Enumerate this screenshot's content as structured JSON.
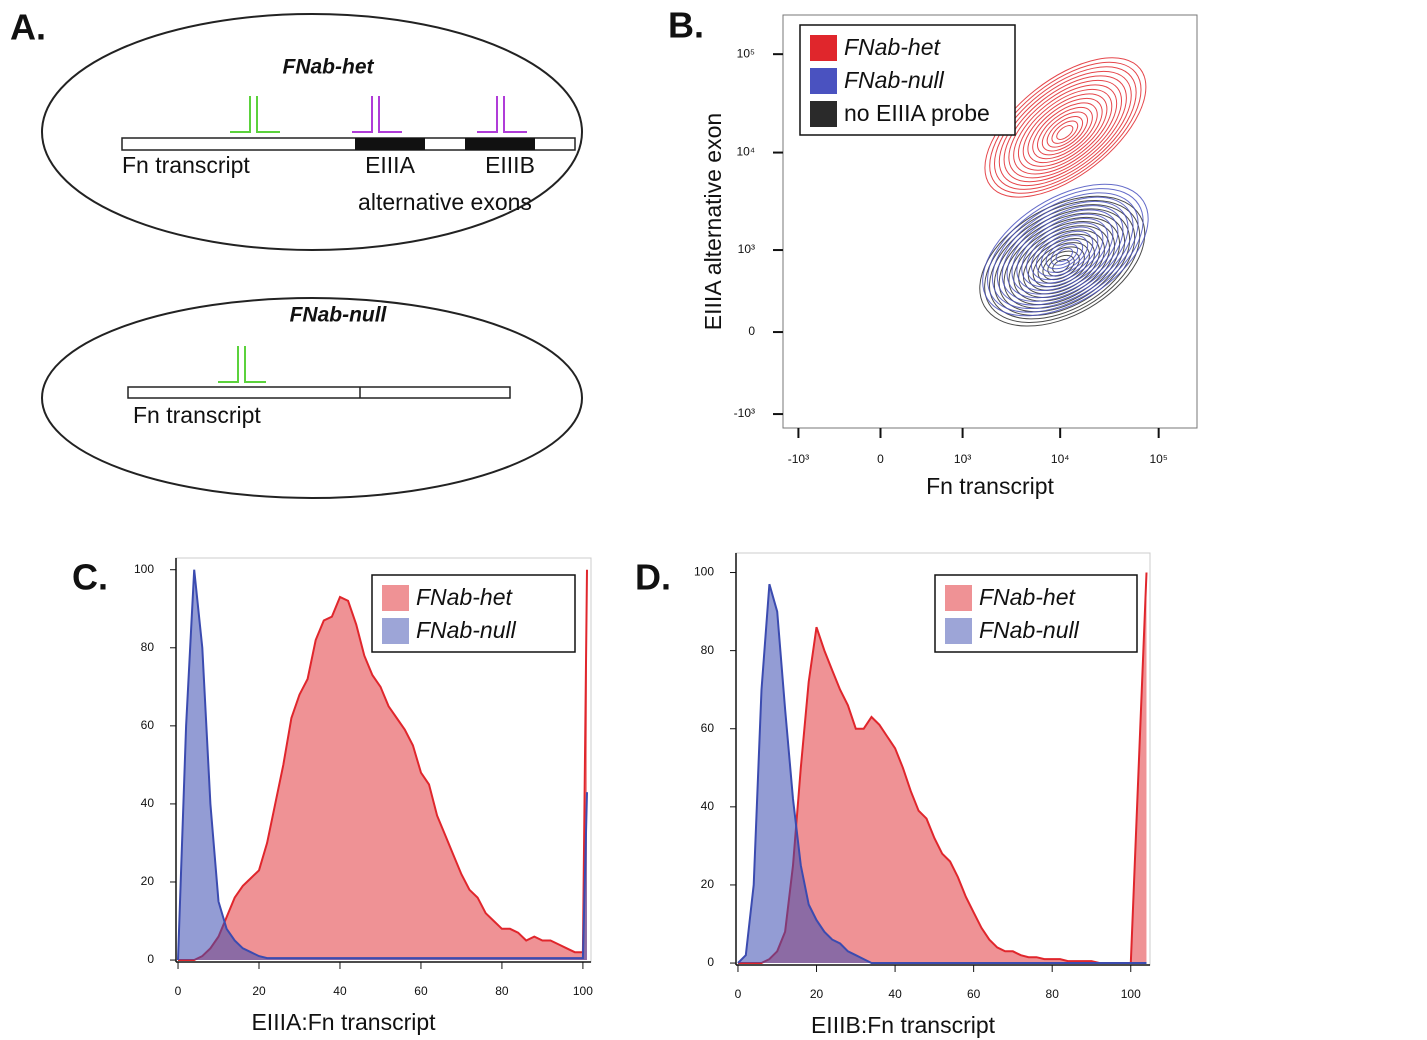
{
  "diagram": {
    "panel": "A.",
    "het": {
      "title": "FNab-het",
      "transcript": "Fn transcript",
      "exon_a": "EIIIA",
      "exon_b": "EIIIB",
      "exons_caption": "alternative exons"
    },
    "null": {
      "title": "FNab-null",
      "transcript": "Fn transcript"
    }
  },
  "chart_data": [
    {
      "type": "contour",
      "panel": "B.",
      "xlabel": "Fn transcript",
      "ylabel": "EIIIA alternative exon",
      "xscale": "biexponential",
      "yscale": "biexponential",
      "xlim": [
        -1450,
        245000
      ],
      "ylim": [
        -1400,
        250000
      ],
      "xticks": [
        {
          "value": -1000,
          "label": "-10³"
        },
        0,
        {
          "value": 1000,
          "label": "10³"
        },
        {
          "value": 10000,
          "label": "10⁴"
        },
        {
          "value": 100000,
          "label": "10⁵"
        }
      ],
      "yticks": [
        {
          "value": -1000,
          "label": "-10³"
        },
        0,
        {
          "value": 1000,
          "label": "10³"
        },
        {
          "value": 10000,
          "label": "10⁴"
        },
        {
          "value": 100000,
          "label": "10⁵"
        }
      ],
      "legend": "upper left",
      "series": [
        {
          "name": "FNab-het",
          "color": "#e0262c",
          "x": 11300,
          "y": 18000
        },
        {
          "name": "FNab-null",
          "color": "#4a52c0",
          "x": 11300,
          "y": 1000
        },
        {
          "name": "no EIIIA probe",
          "color": "#2a2a2a",
          "x": 10500,
          "y": 760
        }
      ]
    },
    {
      "type": "area",
      "panel": "C.",
      "xlabel": "EIIIA:Fn transcript",
      "xlim": [
        -0.5,
        102
      ],
      "ylim": [
        -0.5,
        103
      ],
      "xticks": [
        0,
        20,
        40,
        60,
        80,
        100
      ],
      "yticks": [
        0,
        20,
        40,
        60,
        80,
        100
      ],
      "legend": "upper right",
      "x": [
        0,
        2,
        4,
        6,
        8,
        10,
        12,
        14,
        16,
        18,
        20,
        22,
        24,
        26,
        28,
        30,
        32,
        34,
        36,
        38,
        40,
        42,
        44,
        46,
        48,
        50,
        52,
        54,
        56,
        58,
        60,
        62,
        64,
        66,
        68,
        70,
        72,
        74,
        76,
        78,
        80,
        82,
        84,
        86,
        88,
        90,
        92,
        94,
        96,
        98,
        100,
        101
      ],
      "series": [
        {
          "name": "FNab-het",
          "color": "#e0262c",
          "values": [
            0,
            0,
            0,
            1,
            3,
            6,
            11,
            16,
            19,
            21,
            23,
            30,
            40,
            50,
            62,
            68,
            72,
            82,
            87,
            88,
            93,
            92,
            86,
            78,
            73,
            70,
            65,
            62,
            59,
            55,
            48,
            45,
            37,
            32,
            27,
            22,
            18,
            16,
            12,
            10,
            8,
            8,
            7,
            5,
            6,
            5,
            5,
            4,
            3,
            2,
            2,
            100
          ]
        },
        {
          "name": "FNab-null",
          "color": "#3b4bb0",
          "values": [
            0,
            60,
            100,
            80,
            40,
            15,
            8,
            5,
            3,
            2,
            1,
            0.5,
            0.5,
            0.5,
            0.5,
            0.5,
            0.5,
            0.5,
            0.5,
            0.5,
            0.5,
            0.5,
            0.5,
            0.5,
            0.5,
            0.5,
            0.5,
            0.5,
            0.5,
            0.5,
            0.5,
            0.5,
            0.5,
            0.5,
            0.5,
            0.5,
            0.5,
            0.5,
            0.5,
            0.5,
            0.5,
            0.5,
            0.5,
            0.5,
            0.5,
            0.5,
            0.5,
            0.5,
            0.5,
            0.5,
            0.5,
            43
          ]
        }
      ]
    },
    {
      "type": "area",
      "panel": "D.",
      "xlabel": "EIIIB:Fn transcript",
      "xlim": [
        -0.5,
        104.9
      ],
      "ylim": [
        -0.5,
        105
      ],
      "xticks": [
        0,
        20,
        40,
        60,
        80,
        100
      ],
      "yticks": [
        0,
        20,
        40,
        60,
        80,
        100
      ],
      "legend": "upper right",
      "x": [
        0,
        2,
        4,
        6,
        8,
        10,
        12,
        14,
        16,
        18,
        20,
        22,
        24,
        26,
        28,
        30,
        32,
        34,
        36,
        38,
        40,
        42,
        44,
        46,
        48,
        50,
        52,
        54,
        56,
        58,
        60,
        62,
        64,
        66,
        68,
        70,
        72,
        74,
        76,
        78,
        80,
        82,
        84,
        86,
        88,
        90,
        92,
        94,
        96,
        98,
        100,
        104
      ],
      "series": [
        {
          "name": "FNab-het",
          "color": "#e0262c",
          "values": [
            0,
            0,
            0,
            0,
            1,
            3,
            8,
            25,
            50,
            72,
            86,
            80,
            75,
            70,
            66,
            60,
            60,
            63,
            61,
            58,
            55,
            50,
            44,
            39,
            37,
            32,
            28,
            26,
            22,
            17,
            13,
            9,
            6,
            4,
            3,
            3,
            2,
            1.5,
            1.5,
            1,
            1,
            1,
            0.5,
            0.5,
            0.5,
            0.5,
            0,
            0,
            0,
            0,
            0,
            100
          ]
        },
        {
          "name": "FNab-null",
          "color": "#3b4bb0",
          "values": [
            0,
            2,
            20,
            70,
            97,
            90,
            65,
            42,
            25,
            15,
            11,
            8,
            6,
            5,
            3,
            2,
            1,
            0,
            0,
            0,
            0,
            0,
            0,
            0,
            0,
            0,
            0,
            0,
            0,
            0,
            0,
            0,
            0,
            0,
            0,
            0,
            0,
            0,
            0,
            0,
            0,
            0,
            0,
            0,
            0,
            0,
            0,
            0,
            0,
            0,
            0,
            0
          ]
        }
      ]
    }
  ]
}
